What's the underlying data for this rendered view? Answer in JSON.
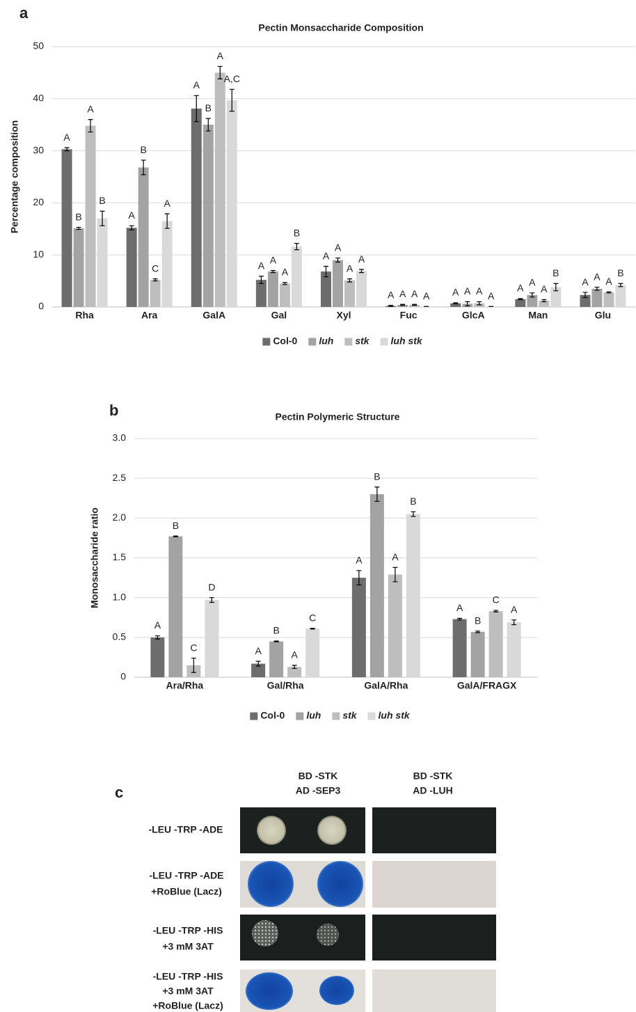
{
  "chart_data": [
    {
      "type": "bar",
      "panel": "a",
      "title": "Pectin Monsaccharide Composition",
      "y_label": "Percentage composition",
      "categories": [
        "Rha",
        "Ara",
        "GalA",
        "Gal",
        "Xyl",
        "Fuc",
        "GlcA",
        "Man",
        "Glu"
      ],
      "ylim": [
        0,
        50
      ],
      "yticks": [
        0,
        10,
        20,
        30,
        40,
        50
      ],
      "grid": true,
      "legend": "bottom",
      "series": [
        {
          "name": "Col-0",
          "color": "#6d6d6d",
          "values": [
            30.3,
            15.2,
            38.1,
            5.2,
            6.8,
            0.2,
            0.7,
            1.5,
            2.3
          ],
          "errors": [
            0.3,
            0.4,
            2.5,
            0.7,
            1.0,
            0.1,
            0.1,
            0.1,
            0.5
          ],
          "annotations": [
            "A",
            "A",
            "A",
            "A",
            "A",
            "A",
            "A",
            "A",
            "A"
          ]
        },
        {
          "name": "luh",
          "color": "#a3a3a3",
          "values": [
            15.1,
            26.8,
            35.0,
            6.8,
            9.0,
            0.4,
            0.6,
            2.3,
            3.5
          ],
          "errors": [
            0.2,
            1.4,
            1.2,
            0.2,
            0.4,
            0.1,
            0.4,
            0.4,
            0.3
          ],
          "annotations": [
            "B",
            "B",
            "B",
            "A",
            "A",
            "A",
            "A",
            "A",
            "A"
          ]
        },
        {
          "name": "stk",
          "color": "#bebebe",
          "values": [
            34.8,
            5.2,
            45.0,
            4.5,
            5.1,
            0.4,
            0.7,
            1.2,
            2.8
          ],
          "errors": [
            1.2,
            0.2,
            1.2,
            0.2,
            0.3,
            0.1,
            0.3,
            0.2,
            0.1
          ],
          "annotations": [
            "A",
            "C",
            "A",
            "A",
            "A",
            "A",
            "A",
            "A",
            "A"
          ]
        },
        {
          "name": "luh stk",
          "color": "#d9d9d9",
          "values": [
            17.0,
            16.5,
            39.7,
            11.6,
            6.9,
            0.1,
            0.1,
            3.8,
            4.2
          ],
          "errors": [
            1.4,
            1.4,
            2.1,
            0.6,
            0.3,
            0.0,
            0.0,
            0.7,
            0.3
          ],
          "annotations": [
            "B",
            "A",
            "A,C",
            "B",
            "A",
            "A",
            "A",
            "B",
            "B"
          ]
        }
      ]
    },
    {
      "type": "bar",
      "panel": "b",
      "title": "Pectin Polymeric Structure",
      "y_label": "Monosaccharide ratio",
      "categories": [
        "Ara/Rha",
        "Gal/Rha",
        "GalA/Rha",
        "GalA/FRAGX"
      ],
      "ylim": [
        0,
        3
      ],
      "yticks": [
        0,
        0.5,
        {
          "value": 1,
          "label": "1.0"
        },
        1.5,
        {
          "value": 2,
          "label": "2.0"
        },
        2.5,
        {
          "value": 3,
          "label": "3.0"
        }
      ],
      "grid": true,
      "legend": "bottom",
      "series": [
        {
          "name": "Col-0",
          "color": "#6d6d6d",
          "values": [
            0.5,
            0.17,
            1.25,
            0.73
          ],
          "errors": [
            0.02,
            0.03,
            0.09,
            0.01
          ],
          "annotations": [
            "A",
            "A",
            "A",
            "A"
          ]
        },
        {
          "name": "luh",
          "color": "#a3a3a3",
          "values": [
            1.77,
            0.45,
            2.3,
            0.57
          ],
          "errors": [
            0.005,
            0.005,
            0.09,
            0.01
          ],
          "annotations": [
            "B",
            "B",
            "B",
            "B"
          ]
        },
        {
          "name": "stk",
          "color": "#bebebe",
          "values": [
            0.15,
            0.13,
            1.29,
            0.83
          ],
          "errors": [
            0.09,
            0.02,
            0.09,
            0.01
          ],
          "annotations": [
            "C",
            "A",
            "A",
            "C"
          ]
        },
        {
          "name": "luh stk",
          "color": "#d9d9d9",
          "values": [
            0.97,
            0.61,
            2.05,
            0.69
          ],
          "errors": [
            0.03,
            0.005,
            0.03,
            0.03
          ],
          "annotations": [
            "D",
            "C",
            "B",
            "A"
          ]
        }
      ]
    }
  ],
  "panel_c": {
    "label": "c",
    "columns": [
      [
        "BD -STK",
        "AD -SEP3"
      ],
      [
        "BD -STK",
        "AD -LUH"
      ]
    ],
    "rows": [
      [
        "-LEU -TRP -ADE"
      ],
      [
        "-LEU -TRP -ADE",
        "+RoBlue (Lacz)"
      ],
      [
        "-LEU -TRP -HIS",
        "+3 mM 3AT"
      ],
      [
        "-LEU -TRP -HIS",
        "+3 mM 3AT",
        "+RoBlue (Lacz)"
      ]
    ]
  }
}
